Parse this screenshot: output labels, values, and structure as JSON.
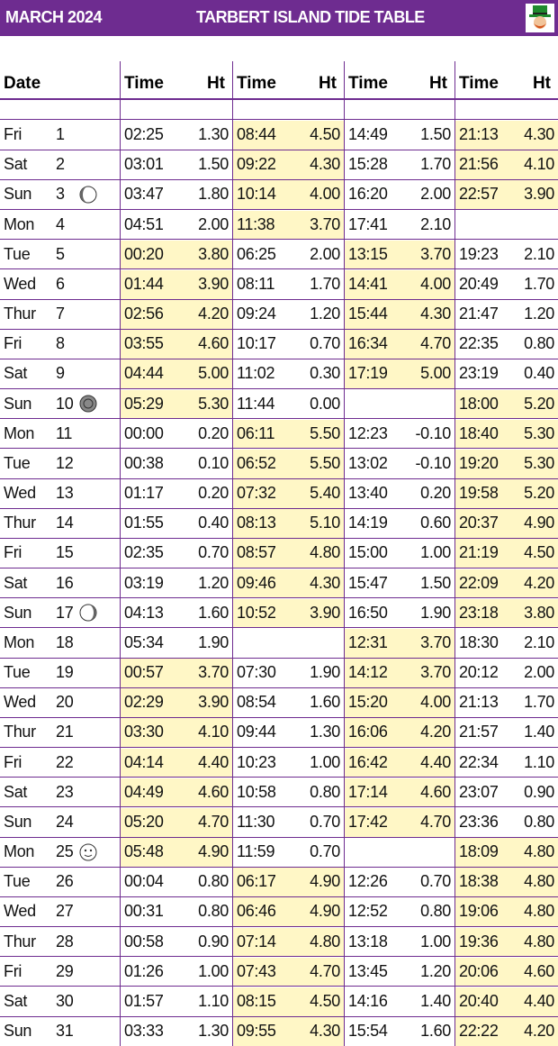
{
  "header": {
    "month": "MARCH 2024",
    "title": "TARBERT ISLAND TIDE TABLE"
  },
  "table": {
    "columns": [
      "Date",
      "Time",
      "Ht",
      "Time",
      "Ht",
      "Time",
      "Ht",
      "Time",
      "Ht"
    ],
    "highlight_color": "#fff7c6",
    "rows": [
      {
        "day": "Fri",
        "date": "1",
        "tides": [
          [
            "02:25",
            "1.30",
            false
          ],
          [
            "08:44",
            "4.50",
            true
          ],
          [
            "14:49",
            "1.50",
            false
          ],
          [
            "21:13",
            "4.30",
            true
          ]
        ]
      },
      {
        "day": "Sat",
        "date": "2",
        "tides": [
          [
            "03:01",
            "1.50",
            false
          ],
          [
            "09:22",
            "4.30",
            true
          ],
          [
            "15:28",
            "1.70",
            false
          ],
          [
            "21:56",
            "4.10",
            true
          ]
        ]
      },
      {
        "day": "Sun",
        "date": "3",
        "tides": [
          [
            "03:47",
            "1.80",
            false
          ],
          [
            "10:14",
            "4.00",
            true
          ],
          [
            "16:20",
            "2.00",
            false
          ],
          [
            "22:57",
            "3.90",
            true
          ]
        ]
      },
      {
        "day": "Mon",
        "date": "4",
        "tides": [
          [
            "04:51",
            "2.00",
            false
          ],
          [
            "11:38",
            "3.70",
            true
          ],
          [
            "17:41",
            "2.10",
            false
          ],
          null
        ]
      },
      {
        "day": "Tue",
        "date": "5",
        "tides": [
          [
            "00:20",
            "3.80",
            true
          ],
          [
            "06:25",
            "2.00",
            false
          ],
          [
            "13:15",
            "3.70",
            true
          ],
          [
            "19:23",
            "2.10",
            false
          ]
        ]
      },
      {
        "day": "Wed",
        "date": "6",
        "tides": [
          [
            "01:44",
            "3.90",
            true
          ],
          [
            "08:11",
            "1.70",
            false
          ],
          [
            "14:41",
            "4.00",
            true
          ],
          [
            "20:49",
            "1.70",
            false
          ]
        ]
      },
      {
        "day": "Thur",
        "date": "7",
        "tides": [
          [
            "02:56",
            "4.20",
            true
          ],
          [
            "09:24",
            "1.20",
            false
          ],
          [
            "15:44",
            "4.30",
            true
          ],
          [
            "21:47",
            "1.20",
            false
          ]
        ]
      },
      {
        "day": "Fri",
        "date": "8",
        "tides": [
          [
            "03:55",
            "4.60",
            true
          ],
          [
            "10:17",
            "0.70",
            false
          ],
          [
            "16:34",
            "4.70",
            true
          ],
          [
            "22:35",
            "0.80",
            false
          ]
        ]
      },
      {
        "day": "Sat",
        "date": "9",
        "tides": [
          [
            "04:44",
            "5.00",
            true
          ],
          [
            "11:02",
            "0.30",
            false
          ],
          [
            "17:19",
            "5.00",
            true
          ],
          [
            "23:19",
            "0.40",
            false
          ]
        ]
      },
      {
        "day": "Sun",
        "date": "10",
        "tides": [
          [
            "05:29",
            "5.30",
            true
          ],
          [
            "11:44",
            "0.00",
            false
          ],
          null,
          [
            "18:00",
            "5.20",
            true
          ]
        ]
      },
      {
        "day": "Mon",
        "date": "11",
        "tides": [
          [
            "00:00",
            "0.20",
            false
          ],
          [
            "06:11",
            "5.50",
            true
          ],
          [
            "12:23",
            "-0.10",
            false
          ],
          [
            "18:40",
            "5.30",
            true
          ]
        ]
      },
      {
        "day": "Tue",
        "date": "12",
        "tides": [
          [
            "00:38",
            "0.10",
            false
          ],
          [
            "06:52",
            "5.50",
            true
          ],
          [
            "13:02",
            "-0.10",
            false
          ],
          [
            "19:20",
            "5.30",
            true
          ]
        ]
      },
      {
        "day": "Wed",
        "date": "13",
        "tides": [
          [
            "01:17",
            "0.20",
            false
          ],
          [
            "07:32",
            "5.40",
            true
          ],
          [
            "13:40",
            "0.20",
            false
          ],
          [
            "19:58",
            "5.20",
            true
          ]
        ]
      },
      {
        "day": "Thur",
        "date": "14",
        "tides": [
          [
            "01:55",
            "0.40",
            false
          ],
          [
            "08:13",
            "5.10",
            true
          ],
          [
            "14:19",
            "0.60",
            false
          ],
          [
            "20:37",
            "4.90",
            true
          ]
        ]
      },
      {
        "day": "Fri",
        "date": "15",
        "tides": [
          [
            "02:35",
            "0.70",
            false
          ],
          [
            "08:57",
            "4.80",
            true
          ],
          [
            "15:00",
            "1.00",
            false
          ],
          [
            "21:19",
            "4.50",
            true
          ]
        ]
      },
      {
        "day": "Sat",
        "date": "16",
        "tides": [
          [
            "03:19",
            "1.20",
            false
          ],
          [
            "09:46",
            "4.30",
            true
          ],
          [
            "15:47",
            "1.50",
            false
          ],
          [
            "22:09",
            "4.20",
            true
          ]
        ]
      },
      {
        "day": "Sun",
        "date": "17",
        "tides": [
          [
            "04:13",
            "1.60",
            false
          ],
          [
            "10:52",
            "3.90",
            true
          ],
          [
            "16:50",
            "1.90",
            false
          ],
          [
            "23:18",
            "3.80",
            true
          ]
        ]
      },
      {
        "day": "Mon",
        "date": "18",
        "tides": [
          [
            "05:34",
            "1.90",
            false
          ],
          null,
          [
            "12:31",
            "3.70",
            true
          ],
          [
            "18:30",
            "2.10",
            false
          ]
        ]
      },
      {
        "day": "Tue",
        "date": "19",
        "tides": [
          [
            "00:57",
            "3.70",
            true
          ],
          [
            "07:30",
            "1.90",
            false
          ],
          [
            "14:12",
            "3.70",
            true
          ],
          [
            "20:12",
            "2.00",
            false
          ]
        ]
      },
      {
        "day": "Wed",
        "date": "20",
        "tides": [
          [
            "02:29",
            "3.90",
            true
          ],
          [
            "08:54",
            "1.60",
            false
          ],
          [
            "15:20",
            "4.00",
            true
          ],
          [
            "21:13",
            "1.70",
            false
          ]
        ]
      },
      {
        "day": "Thur",
        "date": "21",
        "tides": [
          [
            "03:30",
            "4.10",
            true
          ],
          [
            "09:44",
            "1.30",
            false
          ],
          [
            "16:06",
            "4.20",
            true
          ],
          [
            "21:57",
            "1.40",
            false
          ]
        ]
      },
      {
        "day": "Fri",
        "date": "22",
        "tides": [
          [
            "04:14",
            "4.40",
            true
          ],
          [
            "10:23",
            "1.00",
            false
          ],
          [
            "16:42",
            "4.40",
            true
          ],
          [
            "22:34",
            "1.10",
            false
          ]
        ]
      },
      {
        "day": "Sat",
        "date": "23",
        "tides": [
          [
            "04:49",
            "4.60",
            true
          ],
          [
            "10:58",
            "0.80",
            false
          ],
          [
            "17:14",
            "4.60",
            true
          ],
          [
            "23:07",
            "0.90",
            false
          ]
        ]
      },
      {
        "day": "Sun",
        "date": "24",
        "tides": [
          [
            "05:20",
            "4.70",
            true
          ],
          [
            "11:30",
            "0.70",
            false
          ],
          [
            "17:42",
            "4.70",
            true
          ],
          [
            "23:36",
            "0.80",
            false
          ]
        ]
      },
      {
        "day": "Mon",
        "date": "25",
        "tides": [
          [
            "05:48",
            "4.90",
            true
          ],
          [
            "11:59",
            "0.70",
            false
          ],
          null,
          [
            "18:09",
            "4.80",
            true
          ]
        ]
      },
      {
        "day": "Tue",
        "date": "26",
        "tides": [
          [
            "00:04",
            "0.80",
            false
          ],
          [
            "06:17",
            "4.90",
            true
          ],
          [
            "12:26",
            "0.70",
            false
          ],
          [
            "18:38",
            "4.80",
            true
          ]
        ]
      },
      {
        "day": "Wed",
        "date": "27",
        "tides": [
          [
            "00:31",
            "0.80",
            false
          ],
          [
            "06:46",
            "4.90",
            true
          ],
          [
            "12:52",
            "0.80",
            false
          ],
          [
            "19:06",
            "4.80",
            true
          ]
        ]
      },
      {
        "day": "Thur",
        "date": "28",
        "tides": [
          [
            "00:58",
            "0.90",
            false
          ],
          [
            "07:14",
            "4.80",
            true
          ],
          [
            "13:18",
            "1.00",
            false
          ],
          [
            "19:36",
            "4.80",
            true
          ]
        ]
      },
      {
        "day": "Fri",
        "date": "29",
        "tides": [
          [
            "01:26",
            "1.00",
            false
          ],
          [
            "07:43",
            "4.70",
            true
          ],
          [
            "13:45",
            "1.20",
            false
          ],
          [
            "20:06",
            "4.60",
            true
          ]
        ]
      },
      {
        "day": "Sat",
        "date": "30",
        "tides": [
          [
            "01:57",
            "1.10",
            false
          ],
          [
            "08:15",
            "4.50",
            true
          ],
          [
            "14:16",
            "1.40",
            false
          ],
          [
            "20:40",
            "4.40",
            true
          ]
        ]
      },
      {
        "day": "Sun",
        "date": "31",
        "tides": [
          [
            "03:33",
            "1.30",
            false
          ],
          [
            "09:55",
            "4.30",
            true
          ],
          [
            "15:54",
            "1.60",
            false
          ],
          [
            "22:22",
            "4.20",
            true
          ]
        ]
      }
    ]
  }
}
